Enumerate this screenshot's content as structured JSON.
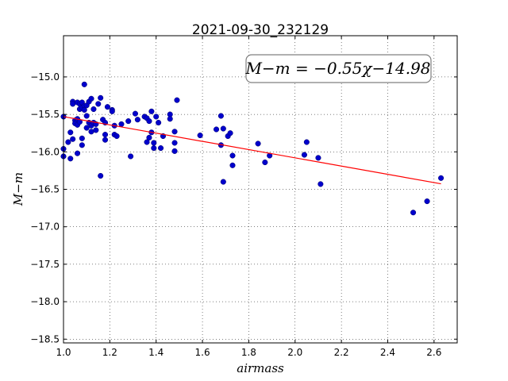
{
  "chart_data": {
    "type": "scatter",
    "title": "2021-09-30_232129",
    "xlabel": "airmass",
    "ylabel": "M−m",
    "xlim": [
      1.0,
      2.7
    ],
    "ylim": [
      -18.55,
      -14.45
    ],
    "xticks": [
      1.0,
      1.2,
      1.4,
      1.6,
      1.8,
      2.0,
      2.2,
      2.4,
      2.6
    ],
    "xtick_labels": [
      "1.0",
      "1.2",
      "1.4",
      "1.6",
      "1.8",
      "2.0",
      "2.2",
      "2.4",
      "2.6"
    ],
    "yticks": [
      -15.0,
      -15.5,
      -16.0,
      -16.5,
      -17.0,
      -17.5,
      -18.0,
      -18.5
    ],
    "ytick_labels": [
      "−15.0",
      "−15.5",
      "−16.0",
      "−16.5",
      "−17.0",
      "−17.5",
      "−18.0",
      "−18.5"
    ],
    "grid": true,
    "annotation": "M−m = −0.55χ−14.98",
    "fit": {
      "slope": -0.55,
      "intercept": -14.98,
      "x_range": [
        1.0,
        2.63
      ],
      "color": "#ff0000"
    },
    "marker_color": "#0000cc",
    "points": [
      [
        1.0,
        -15.53
      ],
      [
        1.0,
        -15.96
      ],
      [
        1.0,
        -16.06
      ],
      [
        1.02,
        -15.87
      ],
      [
        1.03,
        -15.74
      ],
      [
        1.03,
        -16.09
      ],
      [
        1.04,
        -15.33
      ],
      [
        1.04,
        -15.36
      ],
      [
        1.04,
        -15.83
      ],
      [
        1.05,
        -15.58
      ],
      [
        1.05,
        -15.62
      ],
      [
        1.06,
        -15.34
      ],
      [
        1.06,
        -15.56
      ],
      [
        1.06,
        -15.64
      ],
      [
        1.06,
        -16.02
      ],
      [
        1.07,
        -15.43
      ],
      [
        1.07,
        -15.36
      ],
      [
        1.07,
        -15.6
      ],
      [
        1.08,
        -15.34
      ],
      [
        1.08,
        -15.41
      ],
      [
        1.08,
        -15.82
      ],
      [
        1.08,
        -15.91
      ],
      [
        1.09,
        -15.1
      ],
      [
        1.09,
        -15.39
      ],
      [
        1.09,
        -15.44
      ],
      [
        1.1,
        -15.38
      ],
      [
        1.1,
        -15.52
      ],
      [
        1.1,
        -15.68
      ],
      [
        1.11,
        -15.33
      ],
      [
        1.11,
        -15.61
      ],
      [
        1.12,
        -15.29
      ],
      [
        1.12,
        -15.65
      ],
      [
        1.12,
        -15.73
      ],
      [
        1.13,
        -15.43
      ],
      [
        1.13,
        -15.61
      ],
      [
        1.14,
        -15.63
      ],
      [
        1.14,
        -15.71
      ],
      [
        1.15,
        -15.36
      ],
      [
        1.16,
        -15.28
      ],
      [
        1.16,
        -16.32
      ],
      [
        1.17,
        -15.57
      ],
      [
        1.18,
        -15.61
      ],
      [
        1.18,
        -15.77
      ],
      [
        1.18,
        -15.84
      ],
      [
        1.19,
        -15.4
      ],
      [
        1.21,
        -15.44
      ],
      [
        1.21,
        -15.46
      ],
      [
        1.22,
        -15.65
      ],
      [
        1.22,
        -15.77
      ],
      [
        1.23,
        -15.79
      ],
      [
        1.25,
        -15.63
      ],
      [
        1.28,
        -15.59
      ],
      [
        1.29,
        -16.06
      ],
      [
        1.31,
        -15.49
      ],
      [
        1.32,
        -15.57
      ],
      [
        1.35,
        -15.53
      ],
      [
        1.36,
        -15.55
      ],
      [
        1.36,
        -15.87
      ],
      [
        1.37,
        -15.81
      ],
      [
        1.37,
        -15.59
      ],
      [
        1.38,
        -15.46
      ],
      [
        1.38,
        -15.74
      ],
      [
        1.39,
        -15.95
      ],
      [
        1.39,
        -15.88
      ],
      [
        1.4,
        -15.53
      ],
      [
        1.41,
        -15.61
      ],
      [
        1.42,
        -15.95
      ],
      [
        1.43,
        -15.79
      ],
      [
        1.46,
        -15.5
      ],
      [
        1.46,
        -15.56
      ],
      [
        1.48,
        -15.73
      ],
      [
        1.48,
        -15.88
      ],
      [
        1.48,
        -15.99
      ],
      [
        1.49,
        -15.31
      ],
      [
        1.59,
        -15.78
      ],
      [
        1.66,
        -15.7
      ],
      [
        1.68,
        -15.52
      ],
      [
        1.68,
        -15.91
      ],
      [
        1.69,
        -15.69
      ],
      [
        1.69,
        -16.4
      ],
      [
        1.71,
        -15.79
      ],
      [
        1.72,
        -15.75
      ],
      [
        1.73,
        -16.05
      ],
      [
        1.73,
        -16.18
      ],
      [
        1.84,
        -15.89
      ],
      [
        1.87,
        -16.14
      ],
      [
        1.89,
        -16.05
      ],
      [
        2.04,
        -16.04
      ],
      [
        2.05,
        -15.87
      ],
      [
        2.1,
        -16.08
      ],
      [
        2.11,
        -16.43
      ],
      [
        2.51,
        -16.81
      ],
      [
        2.57,
        -16.66
      ],
      [
        2.63,
        -16.35
      ]
    ]
  }
}
